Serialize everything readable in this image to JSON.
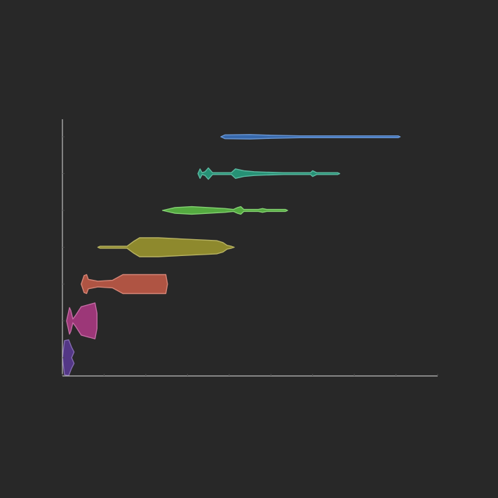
{
  "chart_data": {
    "type": "violin",
    "orientation": "horizontal",
    "title": "",
    "xlabel": "",
    "ylabel": "",
    "xlim": [
      0,
      9
    ],
    "grid": false,
    "legend": "none",
    "axis_color": "#bdbdbd",
    "background": "#282828",
    "series": [
      {
        "color": "#5b3a96",
        "profile": [
          [
            0.0,
            0.0
          ],
          [
            0.05,
            0.9
          ],
          [
            0.15,
            0.95
          ],
          [
            0.22,
            0.55
          ],
          [
            0.28,
            0.3
          ],
          [
            0.22,
            0.0
          ],
          [
            0.28,
            -0.3
          ],
          [
            0.22,
            -0.55
          ],
          [
            0.15,
            -0.95
          ],
          [
            0.05,
            -0.9
          ],
          [
            0.0,
            0.0
          ]
        ]
      },
      {
        "color": "#b03a86",
        "profile": [
          [
            0.1,
            0.0
          ],
          [
            0.17,
            0.7
          ],
          [
            0.2,
            0.55
          ],
          [
            0.25,
            0.1
          ],
          [
            0.32,
            0.3
          ],
          [
            0.45,
            0.75
          ],
          [
            0.78,
            0.95
          ],
          [
            0.83,
            0.4
          ],
          [
            0.83,
            0.0
          ],
          [
            0.83,
            -0.4
          ],
          [
            0.78,
            -0.95
          ],
          [
            0.45,
            -0.75
          ],
          [
            0.32,
            -0.3
          ],
          [
            0.25,
            -0.1
          ],
          [
            0.2,
            -0.55
          ],
          [
            0.17,
            -0.7
          ],
          [
            0.1,
            0.0
          ]
        ]
      },
      {
        "color": "#c75c48",
        "profile": [
          [
            0.45,
            0.0
          ],
          [
            0.52,
            0.45
          ],
          [
            0.58,
            0.5
          ],
          [
            0.62,
            0.25
          ],
          [
            0.85,
            0.15
          ],
          [
            1.2,
            0.2
          ],
          [
            1.45,
            0.5
          ],
          [
            2.48,
            0.5
          ],
          [
            2.52,
            0.0
          ],
          [
            2.48,
            -0.5
          ],
          [
            1.45,
            -0.5
          ],
          [
            1.2,
            -0.2
          ],
          [
            0.85,
            -0.15
          ],
          [
            0.62,
            -0.25
          ],
          [
            0.58,
            -0.5
          ],
          [
            0.52,
            -0.45
          ],
          [
            0.45,
            0.0
          ]
        ]
      },
      {
        "color": "#a09a2e",
        "profile": [
          [
            0.85,
            0.0
          ],
          [
            0.9,
            0.05
          ],
          [
            1.55,
            0.05
          ],
          [
            1.7,
            0.3
          ],
          [
            1.85,
            0.5
          ],
          [
            2.3,
            0.5
          ],
          [
            3.7,
            0.35
          ],
          [
            3.85,
            0.25
          ],
          [
            3.95,
            0.1
          ],
          [
            4.05,
            0.05
          ],
          [
            4.12,
            0.0
          ],
          [
            4.05,
            -0.05
          ],
          [
            3.95,
            -0.1
          ],
          [
            3.85,
            -0.25
          ],
          [
            3.7,
            -0.35
          ],
          [
            2.3,
            -0.5
          ],
          [
            1.85,
            -0.5
          ],
          [
            1.7,
            -0.3
          ],
          [
            1.55,
            -0.05
          ],
          [
            0.9,
            -0.05
          ],
          [
            0.85,
            0.0
          ]
        ]
      },
      {
        "color": "#5cc144",
        "profile": [
          [
            2.4,
            0.0
          ],
          [
            2.7,
            0.15
          ],
          [
            3.1,
            0.2
          ],
          [
            3.5,
            0.15
          ],
          [
            3.9,
            0.1
          ],
          [
            4.1,
            0.05
          ],
          [
            4.2,
            0.15
          ],
          [
            4.28,
            0.2
          ],
          [
            4.35,
            0.05
          ],
          [
            4.7,
            0.05
          ],
          [
            4.8,
            0.1
          ],
          [
            4.9,
            0.05
          ],
          [
            5.35,
            0.05
          ],
          [
            5.4,
            0.0
          ],
          [
            5.35,
            -0.05
          ],
          [
            4.9,
            -0.05
          ],
          [
            4.8,
            -0.1
          ],
          [
            4.7,
            -0.05
          ],
          [
            4.35,
            -0.05
          ],
          [
            4.28,
            -0.2
          ],
          [
            4.2,
            -0.15
          ],
          [
            4.1,
            -0.05
          ],
          [
            3.9,
            -0.1
          ],
          [
            3.5,
            -0.15
          ],
          [
            3.1,
            -0.2
          ],
          [
            2.7,
            -0.15
          ],
          [
            2.4,
            0.0
          ]
        ]
      },
      {
        "color": "#26a383",
        "profile": [
          [
            3.25,
            0.0
          ],
          [
            3.3,
            0.25
          ],
          [
            3.35,
            0.05
          ],
          [
            3.42,
            0.1
          ],
          [
            3.5,
            0.3
          ],
          [
            3.6,
            0.05
          ],
          [
            4.05,
            0.05
          ],
          [
            4.15,
            0.25
          ],
          [
            4.35,
            0.15
          ],
          [
            4.6,
            0.1
          ],
          [
            4.8,
            0.08
          ],
          [
            5.3,
            0.05
          ],
          [
            5.95,
            0.05
          ],
          [
            6.0,
            0.15
          ],
          [
            6.1,
            0.05
          ],
          [
            6.6,
            0.05
          ],
          [
            6.65,
            0.0
          ],
          [
            6.6,
            -0.05
          ],
          [
            6.1,
            -0.05
          ],
          [
            6.0,
            -0.15
          ],
          [
            5.95,
            -0.05
          ],
          [
            5.3,
            -0.05
          ],
          [
            4.8,
            -0.08
          ],
          [
            4.6,
            -0.1
          ],
          [
            4.35,
            -0.15
          ],
          [
            4.15,
            -0.25
          ],
          [
            4.05,
            -0.05
          ],
          [
            3.6,
            -0.05
          ],
          [
            3.5,
            -0.3
          ],
          [
            3.42,
            -0.1
          ],
          [
            3.35,
            -0.05
          ],
          [
            3.3,
            -0.25
          ],
          [
            3.25,
            0.0
          ]
        ]
      },
      {
        "color": "#3a74c4",
        "profile": [
          [
            3.8,
            0.0
          ],
          [
            3.9,
            0.1
          ],
          [
            4.5,
            0.12
          ],
          [
            5.0,
            0.08
          ],
          [
            5.7,
            0.05
          ],
          [
            8.05,
            0.05
          ],
          [
            8.1,
            0.0
          ],
          [
            8.05,
            -0.05
          ],
          [
            5.7,
            -0.05
          ],
          [
            5.0,
            -0.08
          ],
          [
            4.5,
            -0.12
          ],
          [
            3.9,
            -0.1
          ],
          [
            3.8,
            0.0
          ]
        ]
      }
    ]
  }
}
